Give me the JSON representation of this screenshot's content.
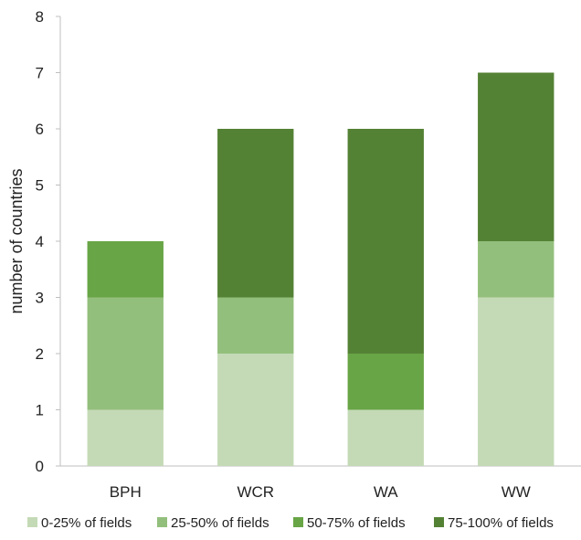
{
  "chart_data": {
    "type": "bar",
    "stacked": true,
    "title": "",
    "xlabel": "",
    "ylabel": "number of countries",
    "ylim": [
      0,
      8
    ],
    "yticks": [
      0,
      1,
      2,
      3,
      4,
      5,
      6,
      7,
      8
    ],
    "grid": false,
    "legend_position": "bottom",
    "categories": [
      "BPH",
      "WCR",
      "WA",
      "WW"
    ],
    "series": [
      {
        "name": "0-25% of fields",
        "color": "#c4dab6",
        "values": [
          1,
          2,
          1,
          3
        ]
      },
      {
        "name": "25-50% of fields",
        "color": "#93bf7c",
        "values": [
          2,
          1,
          0,
          1
        ]
      },
      {
        "name": "50-75% of fields",
        "color": "#68a546",
        "values": [
          1,
          0,
          1,
          0
        ]
      },
      {
        "name": "75-100% of fields",
        "color": "#548235",
        "values": [
          0,
          3,
          4,
          3
        ]
      }
    ]
  }
}
